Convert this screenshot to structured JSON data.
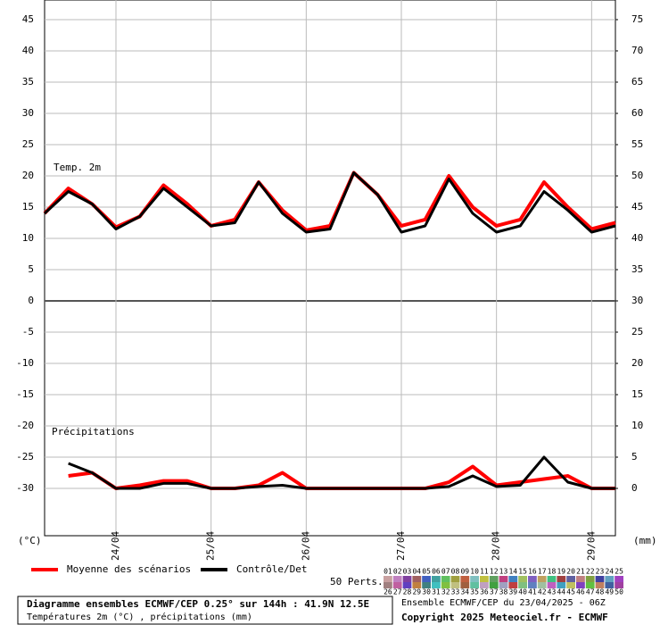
{
  "chart_data": {
    "type": "line",
    "annotations": {
      "temp": "Temp. 2m",
      "precip": "Précipitations",
      "y_unit": "(°C)",
      "y2_unit": "(mm)"
    },
    "categories": [
      null,
      null,
      null,
      "24/04",
      null,
      null,
      null,
      "25/04",
      null,
      null,
      null,
      "26/04",
      null,
      null,
      null,
      "27/04",
      null,
      null,
      null,
      "28/04",
      null,
      null,
      null,
      "29/04",
      null
    ],
    "ylim": [
      -37.57,
      48.14
    ],
    "yticks": [
      45,
      40,
      35,
      30,
      25,
      20,
      15,
      10,
      5,
      0,
      -5,
      -10,
      -15,
      -20,
      -25,
      -30
    ],
    "y2lim": [
      -7.57,
      78.14
    ],
    "y2ticks": [
      75,
      70,
      65,
      60,
      55,
      50,
      45,
      40,
      35,
      30,
      25,
      20,
      15,
      10,
      5,
      0
    ],
    "grid": true,
    "series": [
      {
        "name": "Moyenne des scénarios",
        "color": "#ff0000",
        "values": [
          14,
          18,
          15.5,
          11.8,
          13.5,
          18.5,
          15.5,
          12,
          13,
          19,
          14.5,
          11.3,
          12,
          20.5,
          17,
          12,
          13,
          20,
          15,
          12,
          13,
          19,
          15,
          11.5,
          12.5
        ]
      },
      {
        "name": "Contrôle/Det",
        "color": "#000000",
        "values": [
          14,
          17.5,
          15.5,
          11.5,
          13.5,
          18,
          15,
          12,
          12.5,
          19,
          14,
          11,
          11.5,
          20.5,
          17,
          11,
          12,
          19.5,
          14,
          11,
          12,
          17.5,
          14.5,
          11,
          12
        ]
      },
      {
        "name": "Moyenne des scénarios",
        "color": "#ff0000",
        "axis": "y2",
        "values": [
          null,
          2,
          2.5,
          0,
          0.5,
          1.2,
          1.2,
          0,
          0,
          0.5,
          2.5,
          0,
          0,
          0,
          0,
          0,
          0,
          1,
          3.5,
          0.5,
          1,
          1.5,
          2,
          0,
          0
        ]
      },
      {
        "name": "Contrôle/Det",
        "color": "#000000",
        "axis": "y2",
        "values": [
          null,
          4,
          2.5,
          0,
          0,
          0.8,
          0.8,
          0,
          0,
          0.3,
          0.5,
          0,
          0,
          0,
          0,
          0,
          0,
          0.3,
          2,
          0.3,
          0.5,
          5,
          1,
          0,
          0
        ]
      }
    ],
    "perturbations": {
      "label": "50 Perts.",
      "numbers": [
        "01",
        "02",
        "03",
        "04",
        "05",
        "06",
        "07",
        "08",
        "09",
        "10",
        "11",
        "12",
        "13",
        "14",
        "15",
        "16",
        "17",
        "18",
        "19",
        "20",
        "21",
        "22",
        "23",
        "24",
        "25",
        "26",
        "27",
        "28",
        "29",
        "30",
        "31",
        "32",
        "33",
        "34",
        "35",
        "36",
        "37",
        "38",
        "39",
        "40",
        "41",
        "42",
        "43",
        "44",
        "45",
        "46",
        "47",
        "48",
        "49",
        "50"
      ],
      "colors": [
        "#c8a0a0",
        "#c080c0",
        "#8040a0",
        "#a06060",
        "#4060c0",
        "#40a0a0",
        "#60c060",
        "#a0a040",
        "#c06040",
        "#80c0c0",
        "#c0c040",
        "#60a060",
        "#c04080",
        "#4080c0",
        "#a0c060",
        "#8060c0",
        "#c0a060",
        "#40c080",
        "#a04040",
        "#6060a0",
        "#c08080",
        "#80a040",
        "#4040a0",
        "#60a0c0",
        "#a040c0",
        "#a08080",
        "#c060a0",
        "#6040c0",
        "#c08040",
        "#408080",
        "#40c0c0",
        "#80c040",
        "#c0c080",
        "#a06040",
        "#60c0a0",
        "#c0a0c0",
        "#40a040",
        "#a0a0c0",
        "#c04040",
        "#80c080",
        "#6080c0",
        "#a0c0a0",
        "#c060c0",
        "#40a0c0",
        "#c0c060",
        "#8040c0",
        "#60c040",
        "#c08060",
        "#4060a0",
        "#a040a0"
      ]
    },
    "info": {
      "line1": "Diagramme ensembles ECMWF/CEP 0.25° sur 144h : 41.9N 12.5E",
      "line2": "Températures 2m (°C) , précipitations (mm)",
      "line3": "Ensemble ECMWF/CEP du 23/04/2025 - 06Z",
      "line4": "Copyright 2025 Meteociel.fr - ECMWF"
    }
  }
}
